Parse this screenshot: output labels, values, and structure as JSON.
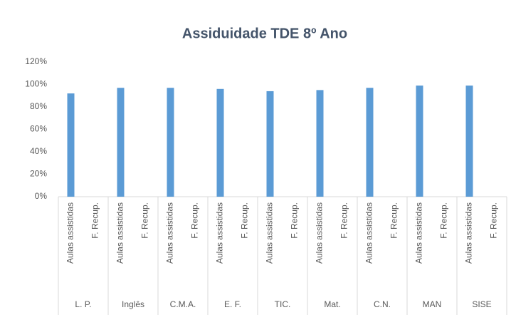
{
  "chart_data": {
    "type": "bar",
    "title": "Assiduidade TDE 8º Ano",
    "groups": [
      "L. P.",
      "Inglês",
      "C.M.A.",
      "E. F.",
      "TIC.",
      "Mat.",
      "C.N.",
      "MAN",
      "SISE"
    ],
    "categories": [
      "Aulas assistidas",
      "F. Recup.",
      "Aulas assistidas",
      "F. Recup.",
      "Aulas assistidas",
      "F. Recup.",
      "Aulas assistidas",
      "F. Recup.",
      "Aulas assistidas",
      "F. Recup.",
      "Aulas assistidas",
      "F. Recup.",
      "Aulas assistidas",
      "F. Recup.",
      "Aulas assistidas",
      "F. Recup.",
      "Aulas assistidas",
      "F. Recup."
    ],
    "values": [
      92,
      0,
      97,
      0,
      97,
      0,
      96,
      0,
      94,
      0,
      95,
      0,
      97,
      0,
      99,
      0,
      99,
      0
    ],
    "color": "#5b9bd5",
    "ylim": [
      0,
      120
    ],
    "yticks": [
      {
        "value": 0,
        "label": "0%"
      },
      {
        "value": 20,
        "label": "20%"
      },
      {
        "value": 40,
        "label": "40%"
      },
      {
        "value": 60,
        "label": "60%"
      },
      {
        "value": 80,
        "label": "80%"
      },
      {
        "value": 100,
        "label": "100%"
      },
      {
        "value": 120,
        "label": "120%"
      }
    ],
    "grid": false
  }
}
